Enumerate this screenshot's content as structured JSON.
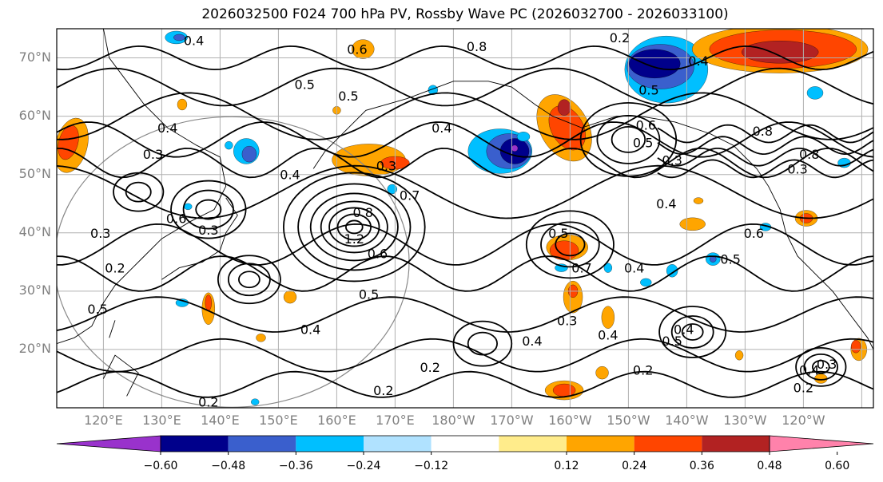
{
  "chart_data": {
    "type": "heatmap",
    "title": "2026032500 F024 700 hPa PV, Rossby Wave PC (2026032700 - 2026033100)",
    "xlabel": "",
    "ylabel": "",
    "x_ticks": [
      "120°E",
      "130°E",
      "140°E",
      "150°E",
      "160°E",
      "170°E",
      "180°W",
      "170°W",
      "160°W",
      "150°W",
      "140°W",
      "130°W",
      "120°W"
    ],
    "y_ticks": [
      "20°N",
      "30°N",
      "40°N",
      "50°N",
      "60°N",
      "70°N"
    ],
    "lon_range": [
      112,
      252
    ],
    "lat_range": [
      10,
      75
    ],
    "grid": true,
    "colorbar": {
      "ticks": [
        "−0.60",
        "−0.48",
        "−0.36",
        "−0.24",
        "−0.12",
        "0.12",
        "0.24",
        "0.36",
        "0.48",
        "0.60"
      ],
      "bounds": [
        -0.72,
        -0.6,
        -0.48,
        -0.36,
        -0.24,
        -0.12,
        0.12,
        0.24,
        0.36,
        0.48,
        0.6,
        0.72
      ],
      "colors": [
        "#9932cc",
        "#00008b",
        "#3a5fcd",
        "#00bfff",
        "#b0e2ff",
        "#ffffff",
        "#ffec8b",
        "#ffa500",
        "#ff4500",
        "#b22222",
        "#ff82ab"
      ],
      "extend": "both"
    },
    "contour_labels": [
      {
        "text": "0.4",
        "lon": 135.5,
        "lat": 73.0
      },
      {
        "text": "0.6",
        "lon": 163.5,
        "lat": 71.5
      },
      {
        "text": "0.8",
        "lon": 184.0,
        "lat": 72.0
      },
      {
        "text": "0.2",
        "lon": 208.5,
        "lat": 73.5
      },
      {
        "text": "0.4",
        "lon": 222.0,
        "lat": 69.5
      },
      {
        "text": "0.5",
        "lon": 154.5,
        "lat": 65.5
      },
      {
        "text": "0.5",
        "lon": 162.0,
        "lat": 63.5
      },
      {
        "text": "0.4",
        "lon": 178.0,
        "lat": 58.0
      },
      {
        "text": "0.5",
        "lon": 213.5,
        "lat": 64.5
      },
      {
        "text": "0.3",
        "lon": 128.5,
        "lat": 53.5
      },
      {
        "text": "0.4",
        "lon": 131.0,
        "lat": 58.0
      },
      {
        "text": "0.3",
        "lon": 168.5,
        "lat": 51.5
      },
      {
        "text": "0.7",
        "lon": 172.5,
        "lat": 46.5
      },
      {
        "text": "0.8",
        "lon": 164.5,
        "lat": 43.5
      },
      {
        "text": "1.2",
        "lon": 163.0,
        "lat": 39.0
      },
      {
        "text": "0.6",
        "lon": 167.0,
        "lat": 36.5
      },
      {
        "text": "0.4",
        "lon": 152.0,
        "lat": 50.0
      },
      {
        "text": "0.6",
        "lon": 132.5,
        "lat": 42.5
      },
      {
        "text": "0.3",
        "lon": 138.0,
        "lat": 40.5
      },
      {
        "text": "0.3",
        "lon": 119.5,
        "lat": 40.0
      },
      {
        "text": "0.2",
        "lon": 122.0,
        "lat": 34.0
      },
      {
        "text": "0.5",
        "lon": 119.0,
        "lat": 27.0
      },
      {
        "text": "0.4",
        "lon": 155.5,
        "lat": 23.5
      },
      {
        "text": "0.5",
        "lon": 165.5,
        "lat": 29.5
      },
      {
        "text": "0.3",
        "lon": 199.5,
        "lat": 25.0
      },
      {
        "text": "0.4",
        "lon": 193.5,
        "lat": 21.5
      },
      {
        "text": "0.2",
        "lon": 176.0,
        "lat": 17.0
      },
      {
        "text": "0.2",
        "lon": 168.0,
        "lat": 13.0
      },
      {
        "text": "0.2",
        "lon": 138.0,
        "lat": 11.0
      },
      {
        "text": "0.5",
        "lon": 198.0,
        "lat": 40.0
      },
      {
        "text": "0.7",
        "lon": 202.0,
        "lat": 34.0
      },
      {
        "text": "0.4",
        "lon": 206.5,
        "lat": 22.5
      },
      {
        "text": "0.4",
        "lon": 211.0,
        "lat": 34.0
      },
      {
        "text": "0.2",
        "lon": 212.5,
        "lat": 16.5
      },
      {
        "text": "0.5",
        "lon": 217.5,
        "lat": 21.5
      },
      {
        "text": "0.4",
        "lon": 219.5,
        "lat": 23.5
      },
      {
        "text": "0.4",
        "lon": 216.5,
        "lat": 45.0
      },
      {
        "text": "0.3",
        "lon": 217.5,
        "lat": 52.5
      },
      {
        "text": "0.6",
        "lon": 213.0,
        "lat": 58.5
      },
      {
        "text": "0.5",
        "lon": 212.5,
        "lat": 55.5
      },
      {
        "text": "0.8",
        "lon": 233.0,
        "lat": 57.5
      },
      {
        "text": "0.8",
        "lon": 241.0,
        "lat": 53.5
      },
      {
        "text": "0.3",
        "lon": 239.0,
        "lat": 51.0
      },
      {
        "text": "0.6",
        "lon": 231.5,
        "lat": 40.0
      },
      {
        "text": "0.5",
        "lon": 227.5,
        "lat": 35.5
      },
      {
        "text": "0.3",
        "lon": 244.0,
        "lat": 17.5
      },
      {
        "text": "0.2",
        "lon": 240.0,
        "lat": 13.5
      },
      {
        "text": "0.4",
        "lon": 241.0,
        "lat": 16.5
      }
    ]
  }
}
